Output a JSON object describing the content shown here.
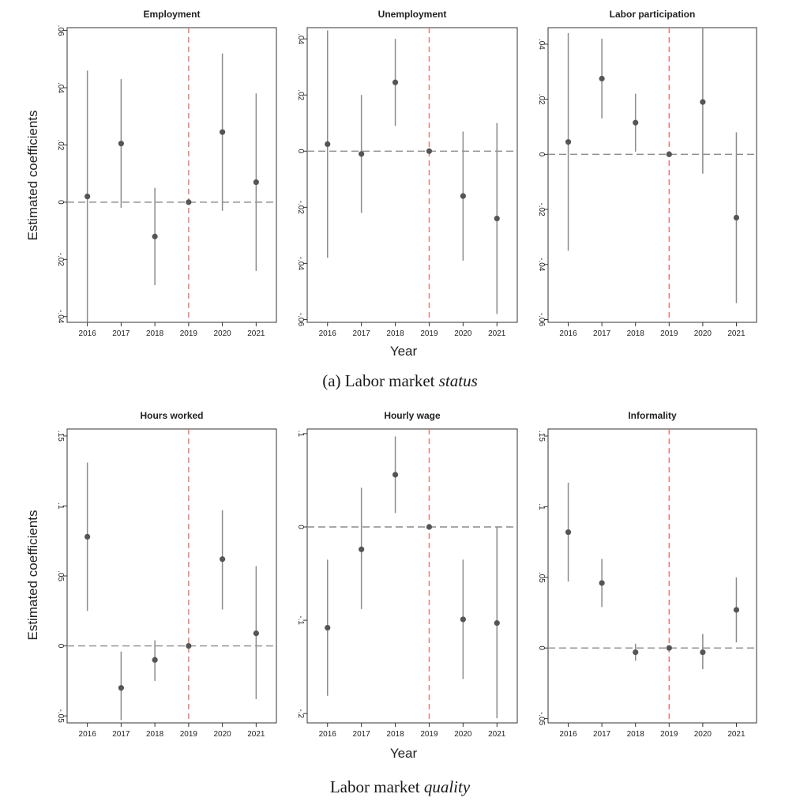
{
  "figure": {
    "x_tick_labels": [
      "2016",
      "2017",
      "2018",
      "2019",
      "2020",
      "2021"
    ],
    "ylabel": "Estimated coefficients",
    "xlabel": "Year"
  },
  "captions": {
    "a_prefix": "(a) Labor market ",
    "a_italic": "status",
    "b_prefix": "Labor market ",
    "b_italic": "quality"
  },
  "colors": {
    "point": "#555555",
    "ci_line": "#8c8c8c",
    "zero_line": "#8c8c8c",
    "event_line": "#e8776f",
    "frame": "#333333"
  },
  "chart_data": [
    {
      "type": "scatter",
      "title": "Employment",
      "x": [
        "2016",
        "2017",
        "2018",
        "2019",
        "2020",
        "2021"
      ],
      "y": [
        0.002,
        0.0205,
        -0.012,
        0.0,
        0.0245,
        0.007
      ],
      "ci_low": [
        -0.042,
        -0.002,
        -0.029,
        0.0,
        -0.003,
        -0.024
      ],
      "ci_high": [
        0.046,
        0.043,
        0.005,
        0.0,
        0.052,
        0.038
      ],
      "ylim": [
        -0.042,
        0.061
      ],
      "yticks": [
        -0.04,
        -0.02,
        0,
        0.02,
        0.04,
        0.06
      ],
      "ytick_labels": [
        "-.04",
        "-.02",
        "0",
        ".02",
        ".04",
        ".06"
      ],
      "reference_year": "2019"
    },
    {
      "type": "scatter",
      "title": "Unemployment",
      "x": [
        "2016",
        "2017",
        "2018",
        "2019",
        "2020",
        "2021"
      ],
      "y": [
        0.0025,
        -0.001,
        0.0245,
        0.0,
        -0.016,
        -0.024
      ],
      "ci_low": [
        -0.038,
        -0.022,
        0.009,
        0.0,
        -0.039,
        -0.058
      ],
      "ci_high": [
        0.043,
        0.02,
        0.04,
        0.0,
        0.007,
        0.01
      ],
      "ylim": [
        -0.061,
        0.044
      ],
      "yticks": [
        -0.06,
        -0.04,
        -0.02,
        0,
        0.02,
        0.04
      ],
      "ytick_labels": [
        "-.06",
        "-.04",
        "-.02",
        "0",
        ".02",
        ".04"
      ],
      "reference_year": "2019"
    },
    {
      "type": "scatter",
      "title": "Labor participation",
      "x": [
        "2016",
        "2017",
        "2018",
        "2019",
        "2020",
        "2021"
      ],
      "y": [
        0.0045,
        0.0275,
        0.0115,
        0.0,
        0.019,
        -0.023
      ],
      "ci_low": [
        -0.035,
        0.013,
        0.001,
        0.0,
        -0.007,
        -0.054
      ],
      "ci_high": [
        0.044,
        0.042,
        0.022,
        0.0,
        0.046,
        0.008
      ],
      "ylim": [
        -0.061,
        0.046
      ],
      "yticks": [
        -0.06,
        -0.04,
        -0.02,
        0,
        0.02,
        0.04
      ],
      "ytick_labels": [
        "-.06",
        "-.04",
        "-.02",
        "0",
        ".02",
        ".04"
      ],
      "reference_year": "2019"
    },
    {
      "type": "scatter",
      "title": "Hours worked",
      "x": [
        "2016",
        "2017",
        "2018",
        "2019",
        "2020",
        "2021"
      ],
      "y": [
        0.078,
        -0.03,
        -0.01,
        0.0,
        0.062,
        0.009
      ],
      "ci_low": [
        0.025,
        -0.053,
        -0.025,
        0.0,
        0.026,
        -0.038
      ],
      "ci_high": [
        0.131,
        -0.004,
        0.004,
        0.0,
        0.097,
        0.057
      ],
      "ylim": [
        -0.055,
        0.155
      ],
      "yticks": [
        -0.05,
        0,
        0.05,
        0.1,
        0.15
      ],
      "ytick_labels": [
        "-.05",
        "0",
        ".05",
        ".1",
        ".15"
      ],
      "reference_year": "2019"
    },
    {
      "type": "scatter",
      "title": "Hourly wage",
      "x": [
        "2016",
        "2017",
        "2018",
        "2019",
        "2020",
        "2021"
      ],
      "y": [
        -0.108,
        -0.024,
        0.056,
        0.0,
        -0.099,
        -0.103
      ],
      "ci_low": [
        -0.181,
        -0.088,
        0.015,
        0.0,
        -0.163,
        -0.205
      ],
      "ci_high": [
        -0.035,
        0.042,
        0.097,
        0.0,
        -0.035,
        0.0
      ],
      "ylim": [
        -0.21,
        0.105
      ],
      "yticks": [
        -0.2,
        -0.1,
        0,
        0.1
      ],
      "ytick_labels": [
        "-.2",
        "-.1",
        "0",
        ".1"
      ],
      "reference_year": "2019"
    },
    {
      "type": "scatter",
      "title": "Informality",
      "x": [
        "2016",
        "2017",
        "2018",
        "2019",
        "2020",
        "2021"
      ],
      "y": [
        0.082,
        0.046,
        -0.003,
        0.0,
        -0.003,
        0.027
      ],
      "ci_low": [
        0.047,
        0.029,
        -0.009,
        0.0,
        -0.015,
        0.004
      ],
      "ci_high": [
        0.117,
        0.063,
        0.003,
        0.0,
        0.01,
        0.05
      ],
      "ylim": [
        -0.053,
        0.155
      ],
      "yticks": [
        -0.05,
        0,
        0.05,
        0.1,
        0.15
      ],
      "ytick_labels": [
        "-.05",
        "0",
        ".05",
        ".1",
        ".15"
      ],
      "reference_year": "2019"
    }
  ]
}
